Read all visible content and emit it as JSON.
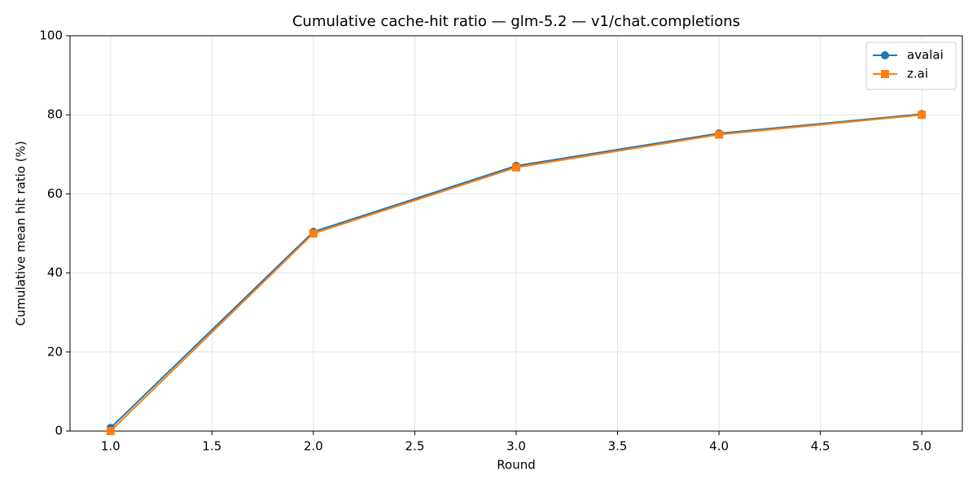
{
  "chart_data": {
    "type": "line",
    "title": "Cumulative cache-hit ratio — glm-5.2 — v1/chat.completions",
    "x_label": "Round",
    "y_label": "Cumulative mean hit ratio (%)",
    "x": [
      1,
      2,
      3,
      4,
      5
    ],
    "series": [
      {
        "name": "avalai",
        "color": "#1f77b4",
        "marker": "circle",
        "values": [
          0.8,
          50.4,
          67.1,
          75.3,
          80.2
        ]
      },
      {
        "name": "z.ai",
        "color": "#ff7f0e",
        "marker": "square",
        "values": [
          0.0,
          50.0,
          66.7,
          75.0,
          80.0
        ]
      }
    ],
    "xlim": [
      0.8,
      5.2
    ],
    "xticks": [
      {
        "value": 1,
        "label": "1.0"
      },
      {
        "value": 1.5,
        "label": "1.5"
      },
      {
        "value": 2,
        "label": "2.0"
      },
      {
        "value": 2.5,
        "label": "2.5"
      },
      {
        "value": 3,
        "label": "3.0"
      },
      {
        "value": 3.5,
        "label": "3.5"
      },
      {
        "value": 4,
        "label": "4.0"
      },
      {
        "value": 4.5,
        "label": "4.5"
      },
      {
        "value": 5,
        "label": "5.0"
      }
    ],
    "ylim": [
      0,
      100
    ],
    "yticks": [
      0,
      20,
      40,
      60,
      80,
      100
    ],
    "grid": true,
    "legend": "upper-right"
  }
}
